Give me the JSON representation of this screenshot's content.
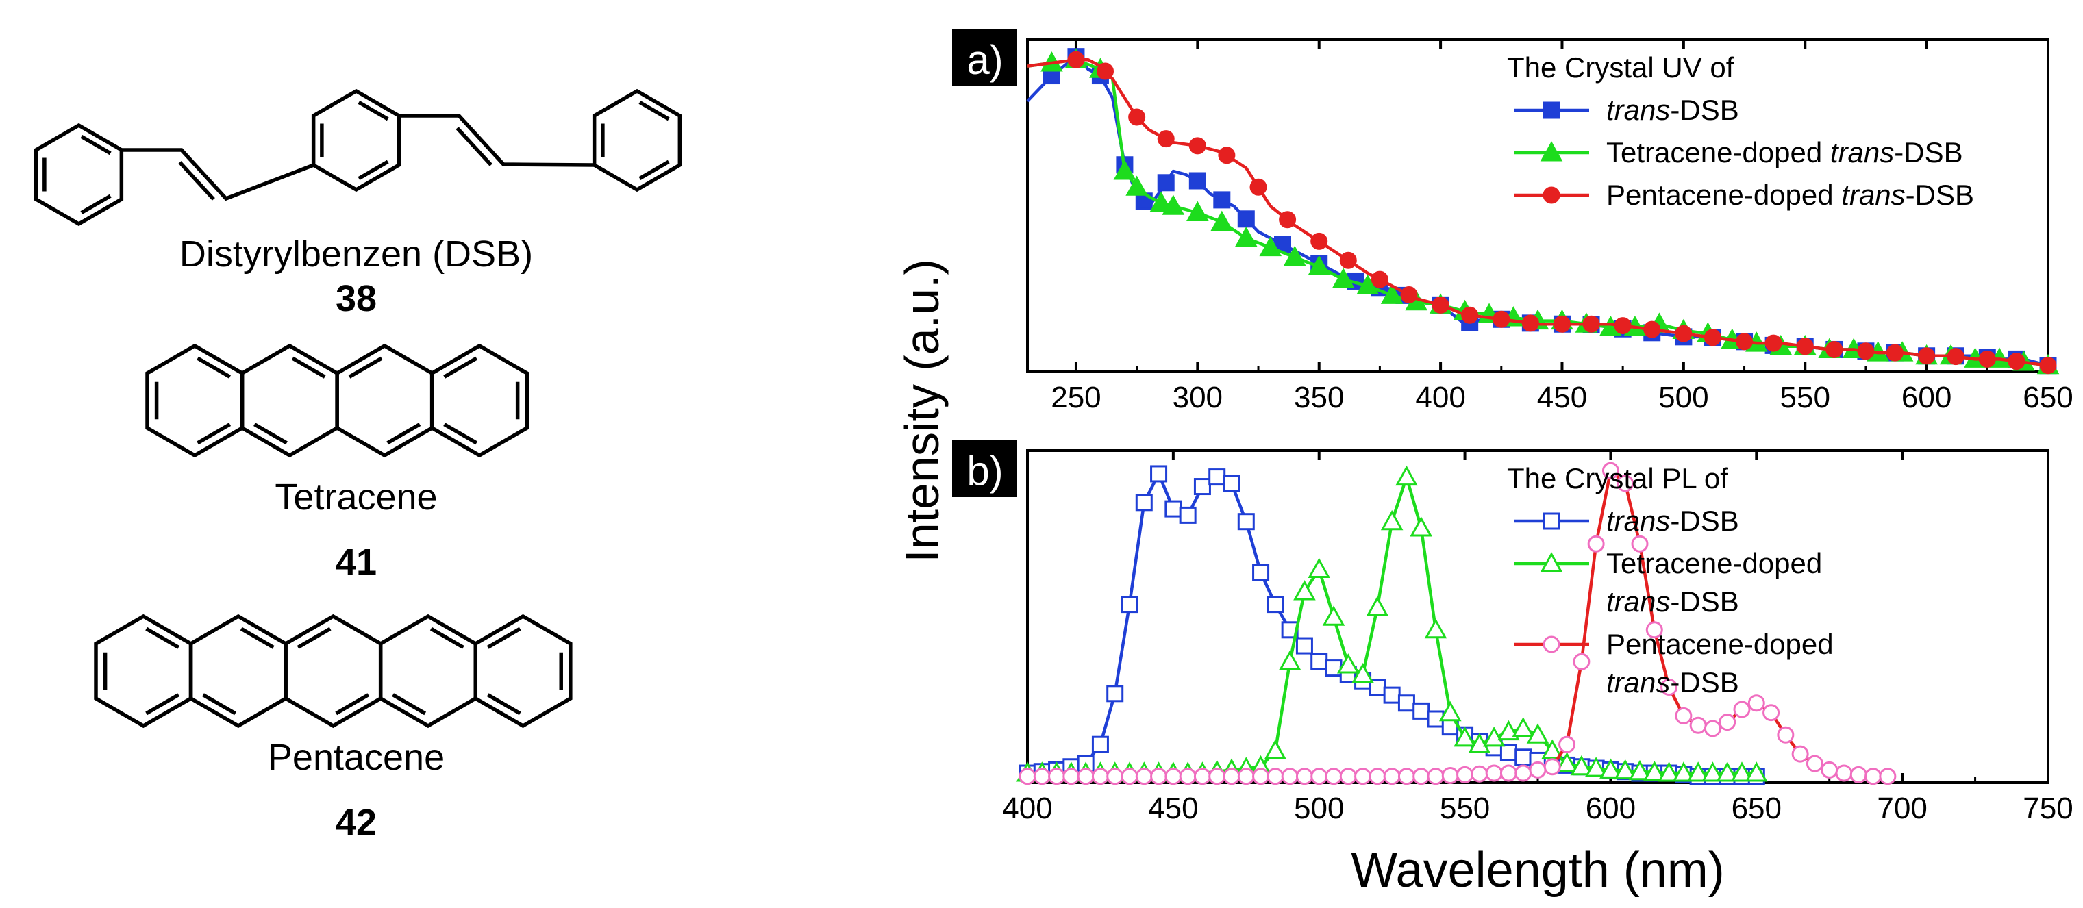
{
  "molecules": {
    "dsb": {
      "name": "Distyrylbenzen (DSB)",
      "number": "38"
    },
    "tetracene": {
      "name": "Tetracene",
      "number": "41"
    },
    "pentacene": {
      "name": "Pentacene",
      "number": "42"
    }
  },
  "colors": {
    "blue": "#1f3fd6",
    "green": "#1ddc1d",
    "red": "#e52020",
    "pink": "#f06ec0"
  },
  "chart_data": [
    {
      "panel": "a)",
      "type": "line",
      "legend_title": "The Crystal UV of",
      "legend_position": "top-right",
      "xlabel": "",
      "ylabel": "Intensity (a.u.)",
      "xlim": [
        230,
        650
      ],
      "ylim": [
        0,
        1
      ],
      "xticks": [
        "250",
        "300",
        "350",
        "400",
        "450",
        "500",
        "550",
        "600",
        "650"
      ],
      "series": [
        {
          "name_italic": "trans",
          "name_rest": "-DSB",
          "color": "blue",
          "marker": "square-filled",
          "x": [
            230,
            240,
            250,
            255,
            260,
            265,
            270,
            275,
            280,
            285,
            290,
            295,
            300,
            305,
            310,
            315,
            320,
            325,
            330,
            340,
            350,
            360,
            370,
            380,
            390,
            400,
            410,
            415,
            420,
            430,
            440,
            450,
            460,
            470,
            480,
            490,
            500,
            510,
            520,
            530,
            540,
            550,
            560,
            570,
            580,
            590,
            600,
            610,
            620,
            630,
            640,
            650
          ],
          "y": [
            0.85,
            0.93,
            0.99,
            0.95,
            0.93,
            0.86,
            0.65,
            0.56,
            0.52,
            0.57,
            0.63,
            0.62,
            0.6,
            0.56,
            0.54,
            0.52,
            0.48,
            0.44,
            0.42,
            0.38,
            0.34,
            0.3,
            0.27,
            0.26,
            0.22,
            0.21,
            0.15,
            0.16,
            0.17,
            0.16,
            0.15,
            0.15,
            0.15,
            0.14,
            0.13,
            0.12,
            0.11,
            0.11,
            0.1,
            0.09,
            0.08,
            0.08,
            0.07,
            0.07,
            0.06,
            0.06,
            0.05,
            0.05,
            0.05,
            0.04,
            0.04,
            0.02
          ],
          "marker_x": [
            240,
            250,
            260,
            270,
            278,
            287,
            300,
            310,
            320,
            335,
            350,
            365,
            375,
            385,
            400,
            412,
            425,
            437,
            450,
            462,
            475,
            487,
            500,
            512,
            525,
            537,
            550,
            562,
            575,
            587,
            600,
            612,
            625,
            637,
            650
          ]
        },
        {
          "name_italic": "",
          "name_pre": "Tetracene-doped ",
          "name_rest": "-DSB",
          "color": "green",
          "marker": "triangle-filled",
          "x": [
            230,
            240,
            250,
            260,
            265,
            270,
            275,
            280,
            285,
            290,
            300,
            310,
            320,
            330,
            340,
            350,
            360,
            370,
            380,
            390,
            400,
            410,
            420,
            430,
            440,
            450,
            460,
            470,
            480,
            490,
            500,
            510,
            520,
            530,
            540,
            550,
            560,
            570,
            580,
            590,
            600,
            610,
            620,
            630,
            640,
            650
          ],
          "y": [
            0.96,
            0.97,
            0.98,
            0.95,
            0.92,
            0.63,
            0.58,
            0.55,
            0.53,
            0.52,
            0.5,
            0.47,
            0.42,
            0.39,
            0.36,
            0.33,
            0.29,
            0.27,
            0.24,
            0.22,
            0.21,
            0.19,
            0.18,
            0.17,
            0.16,
            0.16,
            0.15,
            0.14,
            0.14,
            0.15,
            0.13,
            0.12,
            0.1,
            0.09,
            0.08,
            0.08,
            0.07,
            0.07,
            0.06,
            0.06,
            0.05,
            0.05,
            0.04,
            0.04,
            0.03,
            0.02
          ],
          "marker_x": [
            240,
            250,
            260,
            270,
            275,
            285,
            290,
            300,
            310,
            320,
            330,
            340,
            350,
            360,
            370,
            380,
            390,
            400,
            410,
            420,
            430,
            440,
            450,
            460,
            470,
            480,
            490,
            500,
            510,
            520,
            530,
            540,
            550,
            560,
            570,
            580,
            590,
            600,
            610,
            620,
            630,
            640,
            650
          ]
        },
        {
          "name_italic": "",
          "name_pre": "Pentacene-doped ",
          "name_rest": "-DSB",
          "color": "red",
          "marker": "circle-filled",
          "x": [
            230,
            240,
            250,
            255,
            260,
            265,
            270,
            275,
            280,
            290,
            300,
            310,
            320,
            325,
            330,
            340,
            350,
            360,
            370,
            380,
            390,
            400,
            410,
            420,
            430,
            440,
            450,
            460,
            470,
            480,
            490,
            500,
            510,
            520,
            530,
            540,
            550,
            560,
            570,
            580,
            590,
            600,
            610,
            620,
            630,
            640,
            650
          ],
          "y": [
            0.96,
            0.97,
            0.98,
            0.98,
            0.96,
            0.92,
            0.86,
            0.8,
            0.76,
            0.72,
            0.71,
            0.69,
            0.64,
            0.58,
            0.52,
            0.46,
            0.41,
            0.36,
            0.31,
            0.27,
            0.23,
            0.21,
            0.18,
            0.17,
            0.16,
            0.15,
            0.15,
            0.15,
            0.15,
            0.14,
            0.13,
            0.12,
            0.11,
            0.1,
            0.09,
            0.09,
            0.08,
            0.07,
            0.07,
            0.06,
            0.06,
            0.05,
            0.05,
            0.04,
            0.04,
            0.03,
            0.02
          ],
          "marker_x": [
            250,
            262,
            275,
            287,
            300,
            312,
            325,
            337,
            350,
            362,
            375,
            387,
            400,
            412,
            425,
            437,
            450,
            462,
            475,
            487,
            500,
            512,
            525,
            537,
            550,
            562,
            575,
            587,
            600,
            612,
            625,
            637,
            650
          ]
        }
      ]
    },
    {
      "panel": "b)",
      "type": "line",
      "legend_title": "The Crystal PL of",
      "legend_position": "top-right",
      "xlabel": "Wavelength (nm)",
      "ylabel": "Intensity (a.u.)",
      "xlim": [
        400,
        750
      ],
      "ylim": [
        0,
        1
      ],
      "xticks": [
        "400",
        "450",
        "500",
        "550",
        "600",
        "650",
        "700",
        "750"
      ],
      "series": [
        {
          "name_lines": [
            "",
            "trans",
            "-DSB"
          ],
          "color": "blue",
          "marker": "square-open",
          "x": [
            400,
            410,
            420,
            425,
            430,
            435,
            440,
            445,
            450,
            455,
            460,
            465,
            470,
            475,
            480,
            485,
            490,
            500,
            510,
            520,
            530,
            540,
            550,
            560,
            570,
            580,
            590,
            600,
            610,
            620,
            630,
            640,
            650
          ],
          "y": [
            0.03,
            0.04,
            0.06,
            0.12,
            0.28,
            0.56,
            0.88,
            0.97,
            0.86,
            0.84,
            0.93,
            0.96,
            0.94,
            0.82,
            0.66,
            0.56,
            0.48,
            0.38,
            0.34,
            0.3,
            0.25,
            0.2,
            0.15,
            0.11,
            0.08,
            0.06,
            0.05,
            0.04,
            0.03,
            0.03,
            0.02,
            0.02,
            0.02
          ],
          "marker_step": 5
        },
        {
          "name_lines": [
            "Tetracene-doped",
            "trans",
            "-DSB"
          ],
          "color": "green",
          "marker": "triangle-open",
          "x": [
            400,
            420,
            440,
            460,
            470,
            480,
            485,
            490,
            495,
            500,
            505,
            510,
            515,
            520,
            525,
            530,
            535,
            540,
            545,
            550,
            555,
            560,
            565,
            570,
            575,
            580,
            585,
            590,
            600,
            620,
            640,
            650
          ],
          "y": [
            0.03,
            0.03,
            0.03,
            0.03,
            0.04,
            0.05,
            0.1,
            0.38,
            0.6,
            0.67,
            0.52,
            0.37,
            0.34,
            0.55,
            0.82,
            0.96,
            0.8,
            0.48,
            0.22,
            0.14,
            0.12,
            0.14,
            0.16,
            0.17,
            0.15,
            0.1,
            0.06,
            0.05,
            0.04,
            0.03,
            0.03,
            0.03
          ],
          "marker_step": 5
        },
        {
          "name_lines": [
            "Pentacene-doped",
            "trans",
            "-DSB"
          ],
          "color": "pink",
          "line_color": "red",
          "marker": "circle-open",
          "x": [
            400,
            420,
            440,
            460,
            480,
            500,
            520,
            540,
            560,
            570,
            580,
            585,
            590,
            595,
            600,
            605,
            610,
            615,
            620,
            625,
            630,
            635,
            640,
            645,
            650,
            655,
            660,
            665,
            670,
            675,
            680,
            690,
            695
          ],
          "y": [
            0.02,
            0.02,
            0.02,
            0.02,
            0.02,
            0.02,
            0.02,
            0.02,
            0.03,
            0.03,
            0.05,
            0.12,
            0.38,
            0.75,
            0.98,
            0.94,
            0.75,
            0.48,
            0.3,
            0.21,
            0.18,
            0.17,
            0.19,
            0.23,
            0.25,
            0.22,
            0.15,
            0.09,
            0.06,
            0.04,
            0.03,
            0.02,
            0.02
          ],
          "marker_step": 5
        }
      ]
    }
  ]
}
